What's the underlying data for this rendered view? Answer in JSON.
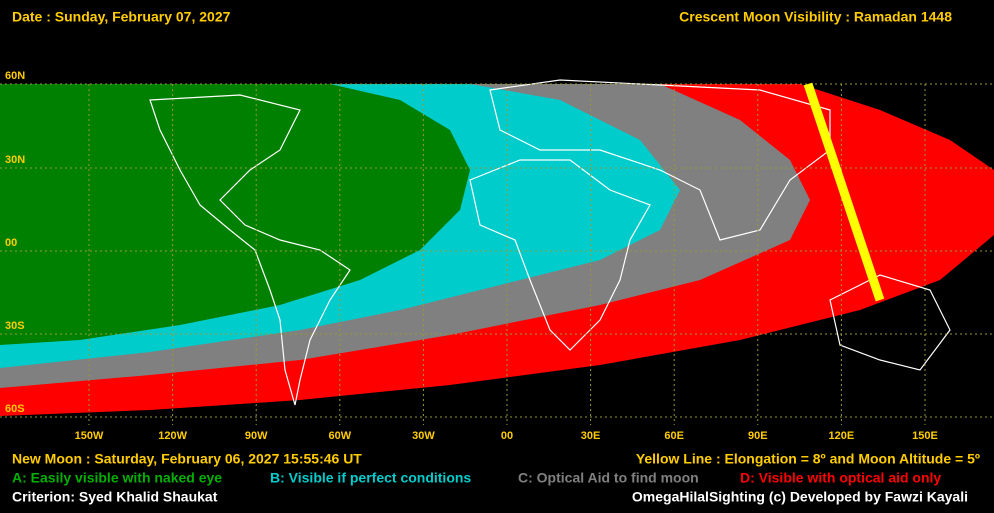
{
  "header": {
    "date": "Date : Sunday, February 07, 2027",
    "title": "Crescent Moon Visibility : Ramadan  1448"
  },
  "map": {
    "lat_labels": [
      "60N",
      "30N",
      "00",
      "30S",
      "60S"
    ],
    "lon_labels": [
      "150W",
      "120W",
      "90W",
      "60W",
      "30W",
      "00",
      "30E",
      "60E",
      "90E",
      "120E",
      "150E"
    ]
  },
  "footer": {
    "new_moon": "New Moon : Saturday, February 06, 2027  15:55:46  UT",
    "yellow_line": "Yellow Line : Elongation = 8º  and Moon Altitude = 5º",
    "legend": [
      {
        "label": "A: Easily visible with naked eye",
        "color": "#008000"
      },
      {
        "label": "B: Visible if perfect conditions",
        "color": "#00cccc"
      },
      {
        "label": "C: Optical Aid to find moon",
        "color": "#808080"
      },
      {
        "label": "D: Visible with optical aid only",
        "color": "#ff0000"
      }
    ],
    "criterion": "Criterion: Syed Khalid Shaukat",
    "credit": "OmegaHilalSighting  (c) Developed by Fawzi Kayali"
  }
}
